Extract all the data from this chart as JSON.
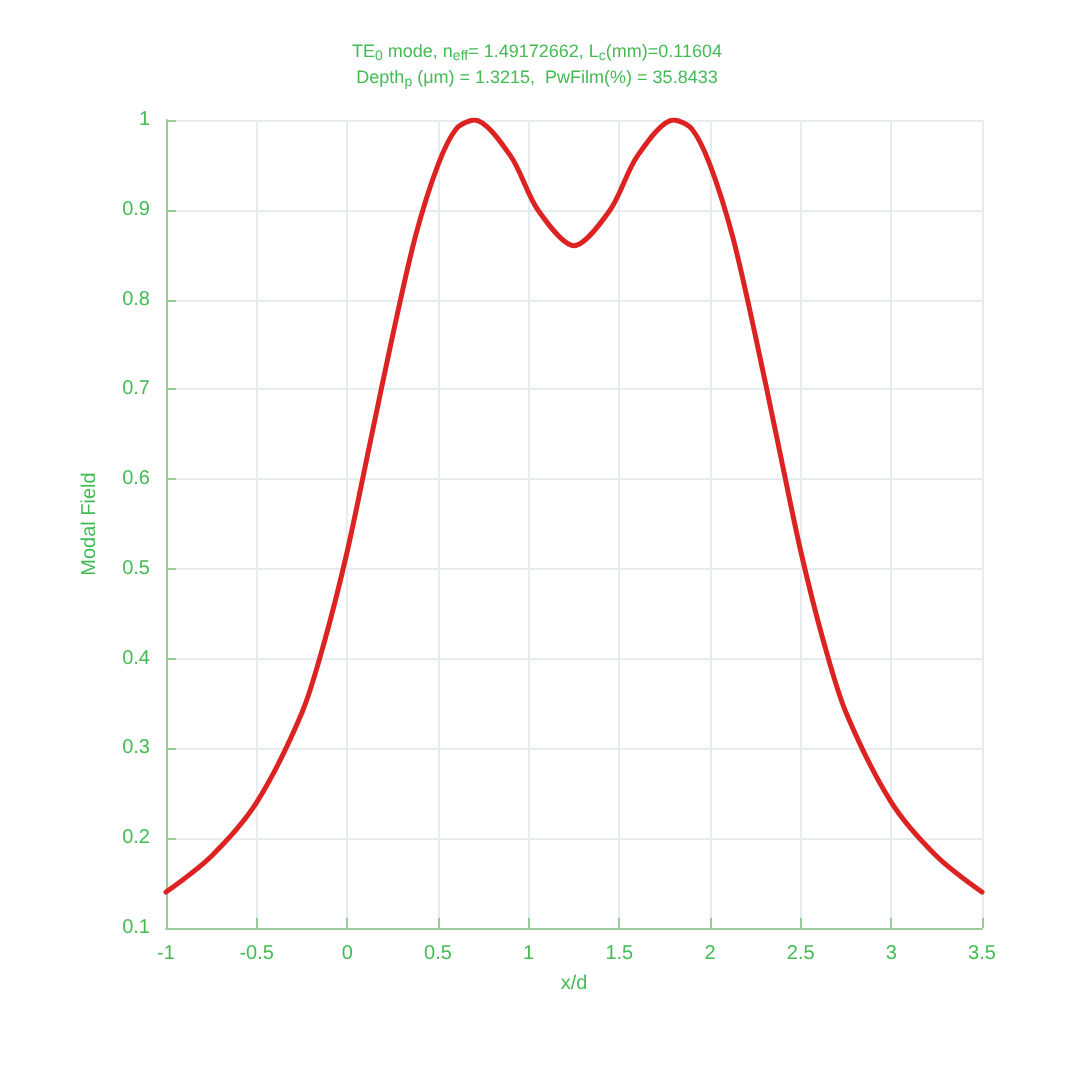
{
  "chart_data": {
    "type": "line",
    "title": "TE$_{0}$ mode, n$_{eff}$= 1.49172662, L$_{c}$(mm)=0.11604",
    "subtitle": "Depth$_{p}$ (μm) = 1.3215,  PwFilm(%) = 35.8433",
    "xlabel": "x/d",
    "ylabel": "Modal Field",
    "series": [
      {
        "color": "#dd2222",
        "x": [
          -1,
          -0.75,
          -0.5,
          -0.25,
          -0.125,
          0,
          0.125,
          0.25,
          0.375,
          0.5,
          0.6,
          0.7,
          0.9,
          1.05,
          1.25,
          1.45,
          1.6,
          1.8,
          1.9,
          2.0,
          2.125,
          2.25,
          2.375,
          2.5,
          2.625,
          2.75,
          3.0,
          3.25,
          3.5
        ],
        "values": [
          0.14,
          0.18,
          0.24,
          0.34,
          0.42,
          0.52,
          0.64,
          0.76,
          0.87,
          0.95,
          0.99,
          1.0,
          0.96,
          0.9,
          0.86,
          0.9,
          0.96,
          1.0,
          0.99,
          0.95,
          0.87,
          0.76,
          0.64,
          0.52,
          0.42,
          0.34,
          0.24,
          0.18,
          0.14
        ]
      }
    ],
    "xlim": [
      -1,
      3.5
    ],
    "xticks": [
      -1,
      -0.5,
      0,
      0.5,
      1,
      1.5,
      2,
      2.5,
      3,
      3.5
    ],
    "ylim": [
      0.1,
      1
    ],
    "yticks": [
      0.1,
      0.2,
      0.3,
      0.4,
      0.5,
      0.6,
      0.7,
      0.8,
      0.9,
      1
    ],
    "grid": true,
    "marker": "none",
    "line_style": "solid"
  }
}
